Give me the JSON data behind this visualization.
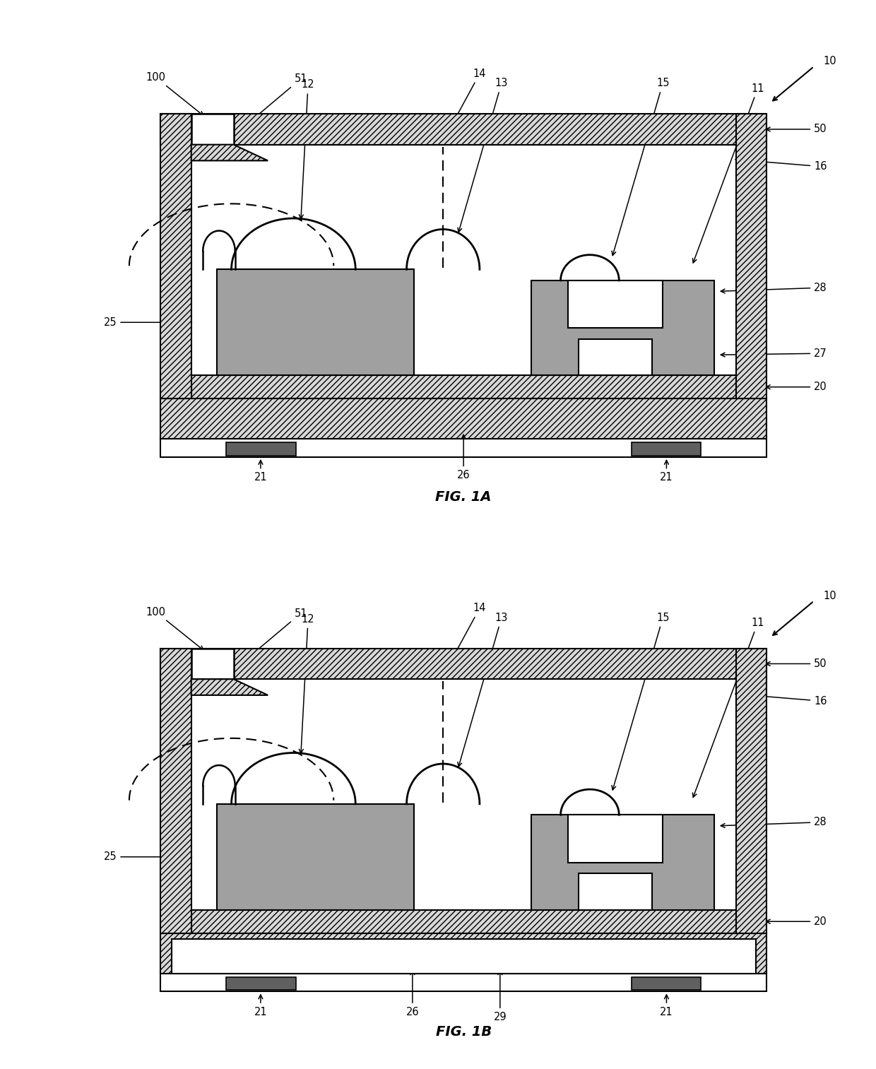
{
  "bg_color": "#ffffff",
  "hatch_color": "#d8d8d8",
  "dark_pad_color": "#606060",
  "gray_die_color": "#a0a0a0",
  "font_size": 10.5,
  "fig1a_title": "FIG. 1A",
  "fig1b_title": "FIG. 1B"
}
